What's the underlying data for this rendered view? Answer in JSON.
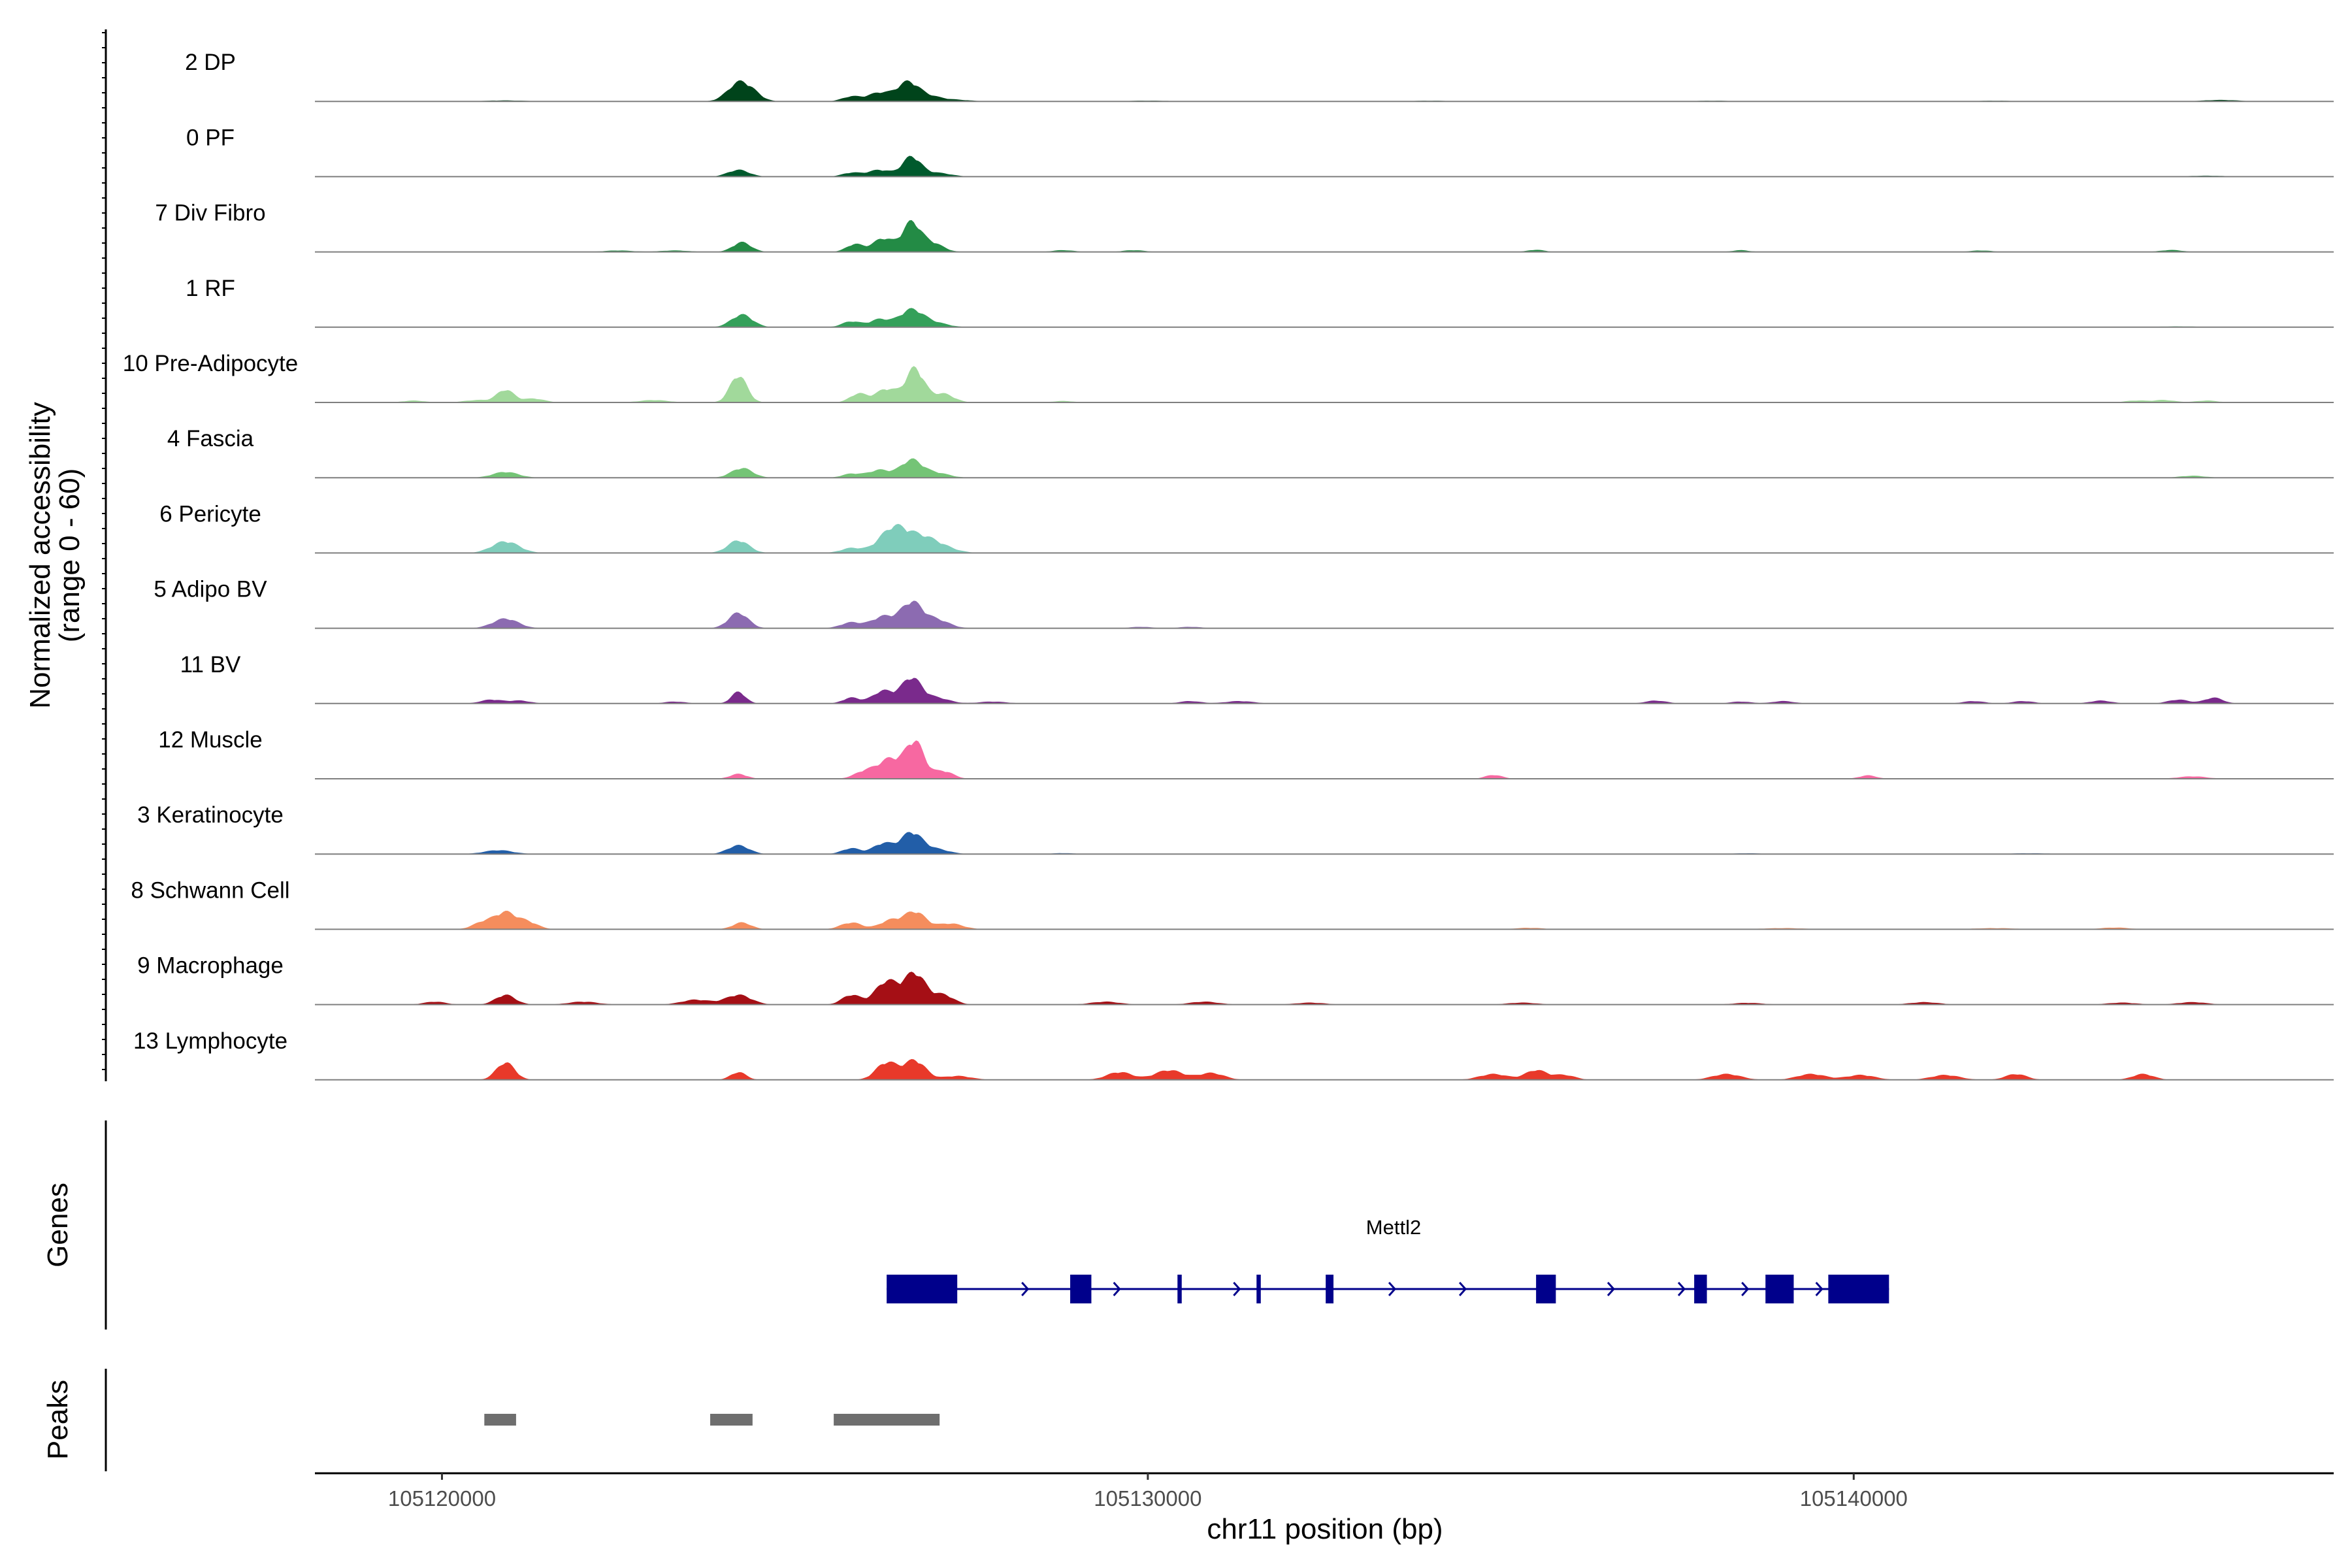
{
  "chart_data": {
    "type": "area",
    "title": "",
    "chromosome": "chr11",
    "xlabel": "chr11 position (bp)",
    "ylabel": "Normalized accessibility",
    "ylabel_sub": "(range 0 - 60)",
    "ylim": [
      0,
      60
    ],
    "xlim": [
      105118200,
      105146800
    ],
    "x_ticks": [
      105120000,
      105130000,
      105140000
    ],
    "x_tick_labels": [
      "105120000",
      "105130000",
      "105140000"
    ],
    "tracks": [
      {
        "name": "2 DP",
        "color": "#00441b",
        "peaks": [
          [
            105120900,
            1.0,
            300
          ],
          [
            105124200,
            18.0,
            160
          ],
          [
            105124400,
            6.0,
            140
          ],
          [
            105125800,
            5.0,
            130
          ],
          [
            105126200,
            9.0,
            160
          ],
          [
            105126600,
            19.0,
            150
          ],
          [
            105126900,
            5.0,
            180
          ],
          [
            105127300,
            1.5,
            200
          ],
          [
            105130000,
            0.8,
            300
          ],
          [
            105134000,
            0.7,
            300
          ],
          [
            105138000,
            0.7,
            300
          ],
          [
            105142000,
            0.7,
            300
          ],
          [
            105145200,
            1.5,
            250
          ]
        ]
      },
      {
        "name": "0 PF",
        "color": "#005a2d",
        "peaks": [
          [
            105124200,
            7.0,
            150
          ],
          [
            105125800,
            4.0,
            130
          ],
          [
            105126200,
            7.0,
            160
          ],
          [
            105126650,
            20.0,
            130
          ],
          [
            105127000,
            4.0,
            200
          ],
          [
            105136000,
            0.6,
            300
          ],
          [
            105145000,
            1.0,
            250
          ]
        ]
      },
      {
        "name": "7 Div Fibro",
        "color": "#238b45",
        "peaks": [
          [
            105122500,
            1.5,
            200
          ],
          [
            105123300,
            1.5,
            200
          ],
          [
            105124250,
            10.0,
            130
          ],
          [
            105125850,
            8.0,
            120
          ],
          [
            105126250,
            14.0,
            140
          ],
          [
            105126650,
            30.0,
            130
          ],
          [
            105126950,
            9.0,
            150
          ],
          [
            105128800,
            1.8,
            150
          ],
          [
            105129800,
            1.8,
            150
          ],
          [
            105135500,
            2.2,
            120
          ],
          [
            105138400,
            1.8,
            120
          ],
          [
            105141800,
            1.5,
            150
          ],
          [
            105144500,
            2.0,
            150
          ]
        ]
      },
      {
        "name": "1 RF",
        "color": "#34a05a",
        "peaks": [
          [
            105124250,
            13.0,
            150
          ],
          [
            105125800,
            6.0,
            130
          ],
          [
            105126200,
            8.0,
            140
          ],
          [
            105126650,
            18.0,
            170
          ],
          [
            105127000,
            4.0,
            180
          ],
          [
            105144600,
            0.8,
            300
          ]
        ]
      },
      {
        "name": "10 Pre-Adipocyte",
        "color": "#a1d99b",
        "peaks": [
          [
            105119600,
            2.0,
            150
          ],
          [
            105120500,
            2.5,
            180
          ],
          [
            105120900,
            13.0,
            120
          ],
          [
            105121300,
            4.0,
            150
          ],
          [
            105123000,
            2.5,
            200
          ],
          [
            105124200,
            28.0,
            120
          ],
          [
            105125900,
            9.0,
            120
          ],
          [
            105126300,
            14.0,
            150
          ],
          [
            105126700,
            35.0,
            130
          ],
          [
            105127100,
            9.0,
            150
          ],
          [
            105128800,
            1.5,
            150
          ],
          [
            105144000,
            2.0,
            150
          ],
          [
            105144400,
            2.5,
            150
          ],
          [
            105145000,
            2.0,
            150
          ]
        ]
      },
      {
        "name": "4 Fascia",
        "color": "#74c476",
        "peaks": [
          [
            105120900,
            6.0,
            180
          ],
          [
            105124250,
            10.0,
            150
          ],
          [
            105125800,
            4.0,
            130
          ],
          [
            105126200,
            8.0,
            160
          ],
          [
            105126650,
            18.0,
            150
          ],
          [
            105127000,
            5.0,
            180
          ],
          [
            105144800,
            2.0,
            180
          ]
        ]
      },
      {
        "name": "6 Pericyte",
        "color": "#7fcdbb",
        "peaks": [
          [
            105120900,
            12.0,
            190
          ],
          [
            105124200,
            13.0,
            150
          ],
          [
            105125800,
            5.0,
            150
          ],
          [
            105126400,
            26.0,
            200
          ],
          [
            105126800,
            14.0,
            200
          ],
          [
            105127100,
            5.0,
            200
          ]
        ]
      },
      {
        "name": "5 Adipo BV",
        "color": "#8c6bb1",
        "peaks": [
          [
            105120900,
            10.0,
            180
          ],
          [
            105124200,
            16.0,
            140
          ],
          [
            105125800,
            6.0,
            150
          ],
          [
            105126250,
            12.0,
            160
          ],
          [
            105126650,
            26.0,
            150
          ],
          [
            105127000,
            9.0,
            180
          ],
          [
            105129900,
            1.5,
            150
          ],
          [
            105130600,
            1.5,
            150
          ]
        ]
      },
      {
        "name": "11 BV",
        "color": "#7a2a8c",
        "peaks": [
          [
            105120700,
            4.0,
            150
          ],
          [
            105121100,
            3.0,
            150
          ],
          [
            105123300,
            2.0,
            150
          ],
          [
            105124200,
            12.0,
            100
          ],
          [
            105125800,
            6.0,
            120
          ],
          [
            105126250,
            13.0,
            150
          ],
          [
            105126650,
            26.0,
            140
          ],
          [
            105127000,
            6.0,
            180
          ],
          [
            105127800,
            2.0,
            200
          ],
          [
            105130600,
            2.5,
            150
          ],
          [
            105131300,
            2.5,
            200
          ],
          [
            105137200,
            3.0,
            150
          ],
          [
            105138400,
            2.0,
            150
          ],
          [
            105139000,
            2.5,
            150
          ],
          [
            105141700,
            2.5,
            150
          ],
          [
            105142400,
            2.5,
            150
          ],
          [
            105143500,
            3.0,
            150
          ],
          [
            105144600,
            4.0,
            150
          ],
          [
            105145100,
            6.0,
            130
          ]
        ]
      },
      {
        "name": "12 Muscle",
        "color": "#f768a1",
        "peaks": [
          [
            105124200,
            5.0,
            120
          ],
          [
            105126000,
            8.0,
            150
          ],
          [
            105126350,
            20.0,
            160
          ],
          [
            105126700,
            38.0,
            130
          ],
          [
            105127100,
            8.0,
            140
          ],
          [
            105134900,
            4.0,
            120
          ],
          [
            105140200,
            3.5,
            120
          ],
          [
            105144800,
            2.5,
            200
          ]
        ]
      },
      {
        "name": "3 Keratinocyte",
        "color": "#225ea8",
        "peaks": [
          [
            105120800,
            4.0,
            200
          ],
          [
            105124200,
            9.0,
            150
          ],
          [
            105125800,
            6.0,
            130
          ],
          [
            105126250,
            11.0,
            140
          ],
          [
            105126650,
            22.0,
            150
          ],
          [
            105127000,
            5.0,
            180
          ],
          [
            105128800,
            1.0,
            150
          ],
          [
            105138500,
            0.8,
            200
          ],
          [
            105142500,
            0.8,
            300
          ]
        ]
      },
      {
        "name": "8 Schwann Cell",
        "color": "#f58d5d",
        "peaks": [
          [
            105120600,
            8.0,
            150
          ],
          [
            105120900,
            16.0,
            140
          ],
          [
            105121200,
            8.0,
            150
          ],
          [
            105124250,
            7.0,
            130
          ],
          [
            105125800,
            7.0,
            150
          ],
          [
            105126350,
            9.0,
            150
          ],
          [
            105126700,
            18.0,
            150
          ],
          [
            105127200,
            6.0,
            180
          ],
          [
            105135400,
            1.5,
            200
          ],
          [
            105139000,
            1.2,
            300
          ],
          [
            105142000,
            1.2,
            300
          ],
          [
            105143700,
            1.8,
            200
          ]
        ]
      },
      {
        "name": "9 Macrophage",
        "color": "#a50f15",
        "peaks": [
          [
            105119900,
            3.0,
            150
          ],
          [
            105120900,
            10.0,
            140
          ],
          [
            105122000,
            3.0,
            200
          ],
          [
            105123600,
            5.0,
            200
          ],
          [
            105124200,
            10.0,
            180
          ],
          [
            105125800,
            10.0,
            130
          ],
          [
            105126300,
            24.0,
            160
          ],
          [
            105126700,
            32.0,
            150
          ],
          [
            105127100,
            10.0,
            150
          ],
          [
            105129400,
            3.0,
            200
          ],
          [
            105130800,
            3.0,
            200
          ],
          [
            105132300,
            2.0,
            200
          ],
          [
            105135300,
            2.0,
            200
          ],
          [
            105138500,
            1.8,
            200
          ],
          [
            105141000,
            2.5,
            200
          ],
          [
            105143800,
            2.0,
            200
          ],
          [
            105144800,
            2.5,
            200
          ]
        ]
      },
      {
        "name": "13 Lymphocyte",
        "color": "#e8392a",
        "peaks": [
          [
            105120900,
            18.0,
            130
          ],
          [
            105124200,
            8.0,
            110
          ],
          [
            105126300,
            18.0,
            150
          ],
          [
            105126700,
            20.0,
            150
          ],
          [
            105127300,
            4.0,
            200
          ],
          [
            105129600,
            8.0,
            180
          ],
          [
            105130300,
            10.0,
            200
          ],
          [
            105130900,
            7.0,
            180
          ],
          [
            105134900,
            6.0,
            200
          ],
          [
            105135500,
            10.0,
            150
          ],
          [
            105135900,
            5.0,
            150
          ],
          [
            105138200,
            6.0,
            200
          ],
          [
            105139400,
            6.0,
            200
          ],
          [
            105140100,
            5.0,
            200
          ],
          [
            105141300,
            5.0,
            200
          ],
          [
            105142300,
            6.0,
            150
          ],
          [
            105144100,
            6.0,
            150
          ]
        ]
      }
    ],
    "genes": {
      "track_label": "Genes",
      "name": "Mettl2",
      "strand": "+",
      "start": 105126300,
      "end": 105140500,
      "exons": [
        [
          105126300,
          105127300
        ],
        [
          105128900,
          105129200
        ],
        [
          105130420,
          105130480
        ],
        [
          105131540,
          105131600
        ],
        [
          105132520,
          105132630
        ],
        [
          105135500,
          105135780
        ],
        [
          105137740,
          105137920
        ],
        [
          105138750,
          105139150
        ],
        [
          105139640,
          105140500
        ]
      ],
      "arrows": [
        105126400,
        105128300,
        105129600,
        105131300,
        105133500,
        105134500,
        105136600,
        105137600,
        105138500,
        105139550
      ]
    },
    "peaks": {
      "track_label": "Peaks",
      "color": "#6e6e6e",
      "ranges": [
        [
          105120600,
          105121050
        ],
        [
          105123800,
          105124400
        ],
        [
          105125550,
          105127050
        ]
      ]
    }
  }
}
